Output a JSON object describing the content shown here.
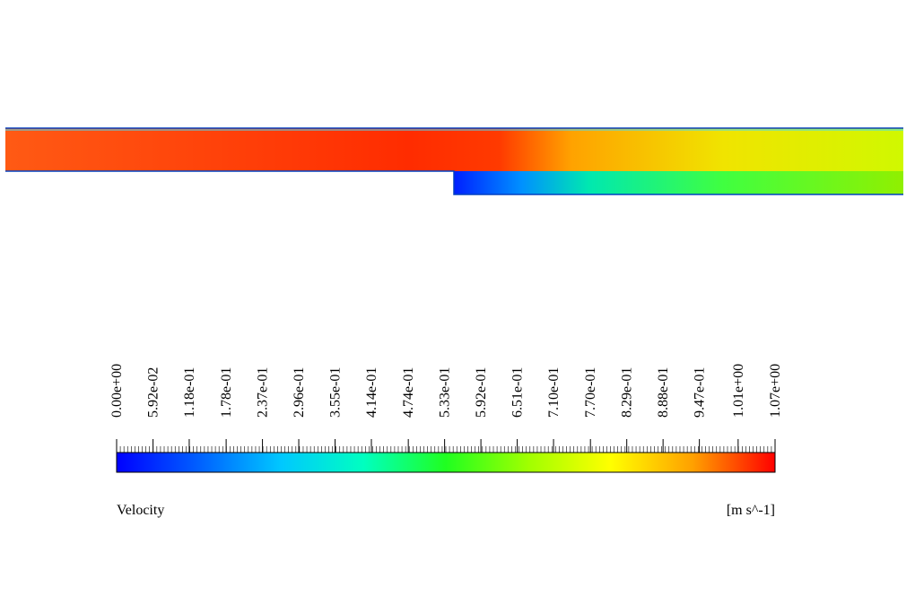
{
  "chart_data": {
    "type": "contour",
    "colorbar": {
      "label": "Velocity",
      "unit": "[m s^-1]",
      "lim": [
        0,
        1.07
      ],
      "colormap": [
        "#0000ff",
        "#0060ff",
        "#00c8ff",
        "#00ffc0",
        "#20ff20",
        "#a0ff00",
        "#ffff00",
        "#ffa000",
        "#ff0000"
      ],
      "ticks": [
        {
          "value": 0,
          "label": "0.00e+00"
        },
        {
          "value": 0.0592,
          "label": "5.92e-02"
        },
        {
          "value": 0.118,
          "label": "1.18e-01"
        },
        {
          "value": 0.178,
          "label": "1.78e-01"
        },
        {
          "value": 0.237,
          "label": "2.37e-01"
        },
        {
          "value": 0.296,
          "label": "2.96e-01"
        },
        {
          "value": 0.355,
          "label": "3.55e-01"
        },
        {
          "value": 0.414,
          "label": "4.14e-01"
        },
        {
          "value": 0.474,
          "label": "4.74e-01"
        },
        {
          "value": 0.533,
          "label": "5.33e-01"
        },
        {
          "value": 0.592,
          "label": "5.92e-01"
        },
        {
          "value": 0.651,
          "label": "6.51e-01"
        },
        {
          "value": 0.71,
          "label": "7.10e-01"
        },
        {
          "value": 0.77,
          "label": "7.70e-01"
        },
        {
          "value": 0.829,
          "label": "8.29e-01"
        },
        {
          "value": 0.888,
          "label": "8.88e-01"
        },
        {
          "value": 0.947,
          "label": "9.47e-01"
        },
        {
          "value": 1.01,
          "label": "1.01e+00"
        },
        {
          "value": 1.07,
          "label": "1.07e+00"
        }
      ]
    }
  }
}
